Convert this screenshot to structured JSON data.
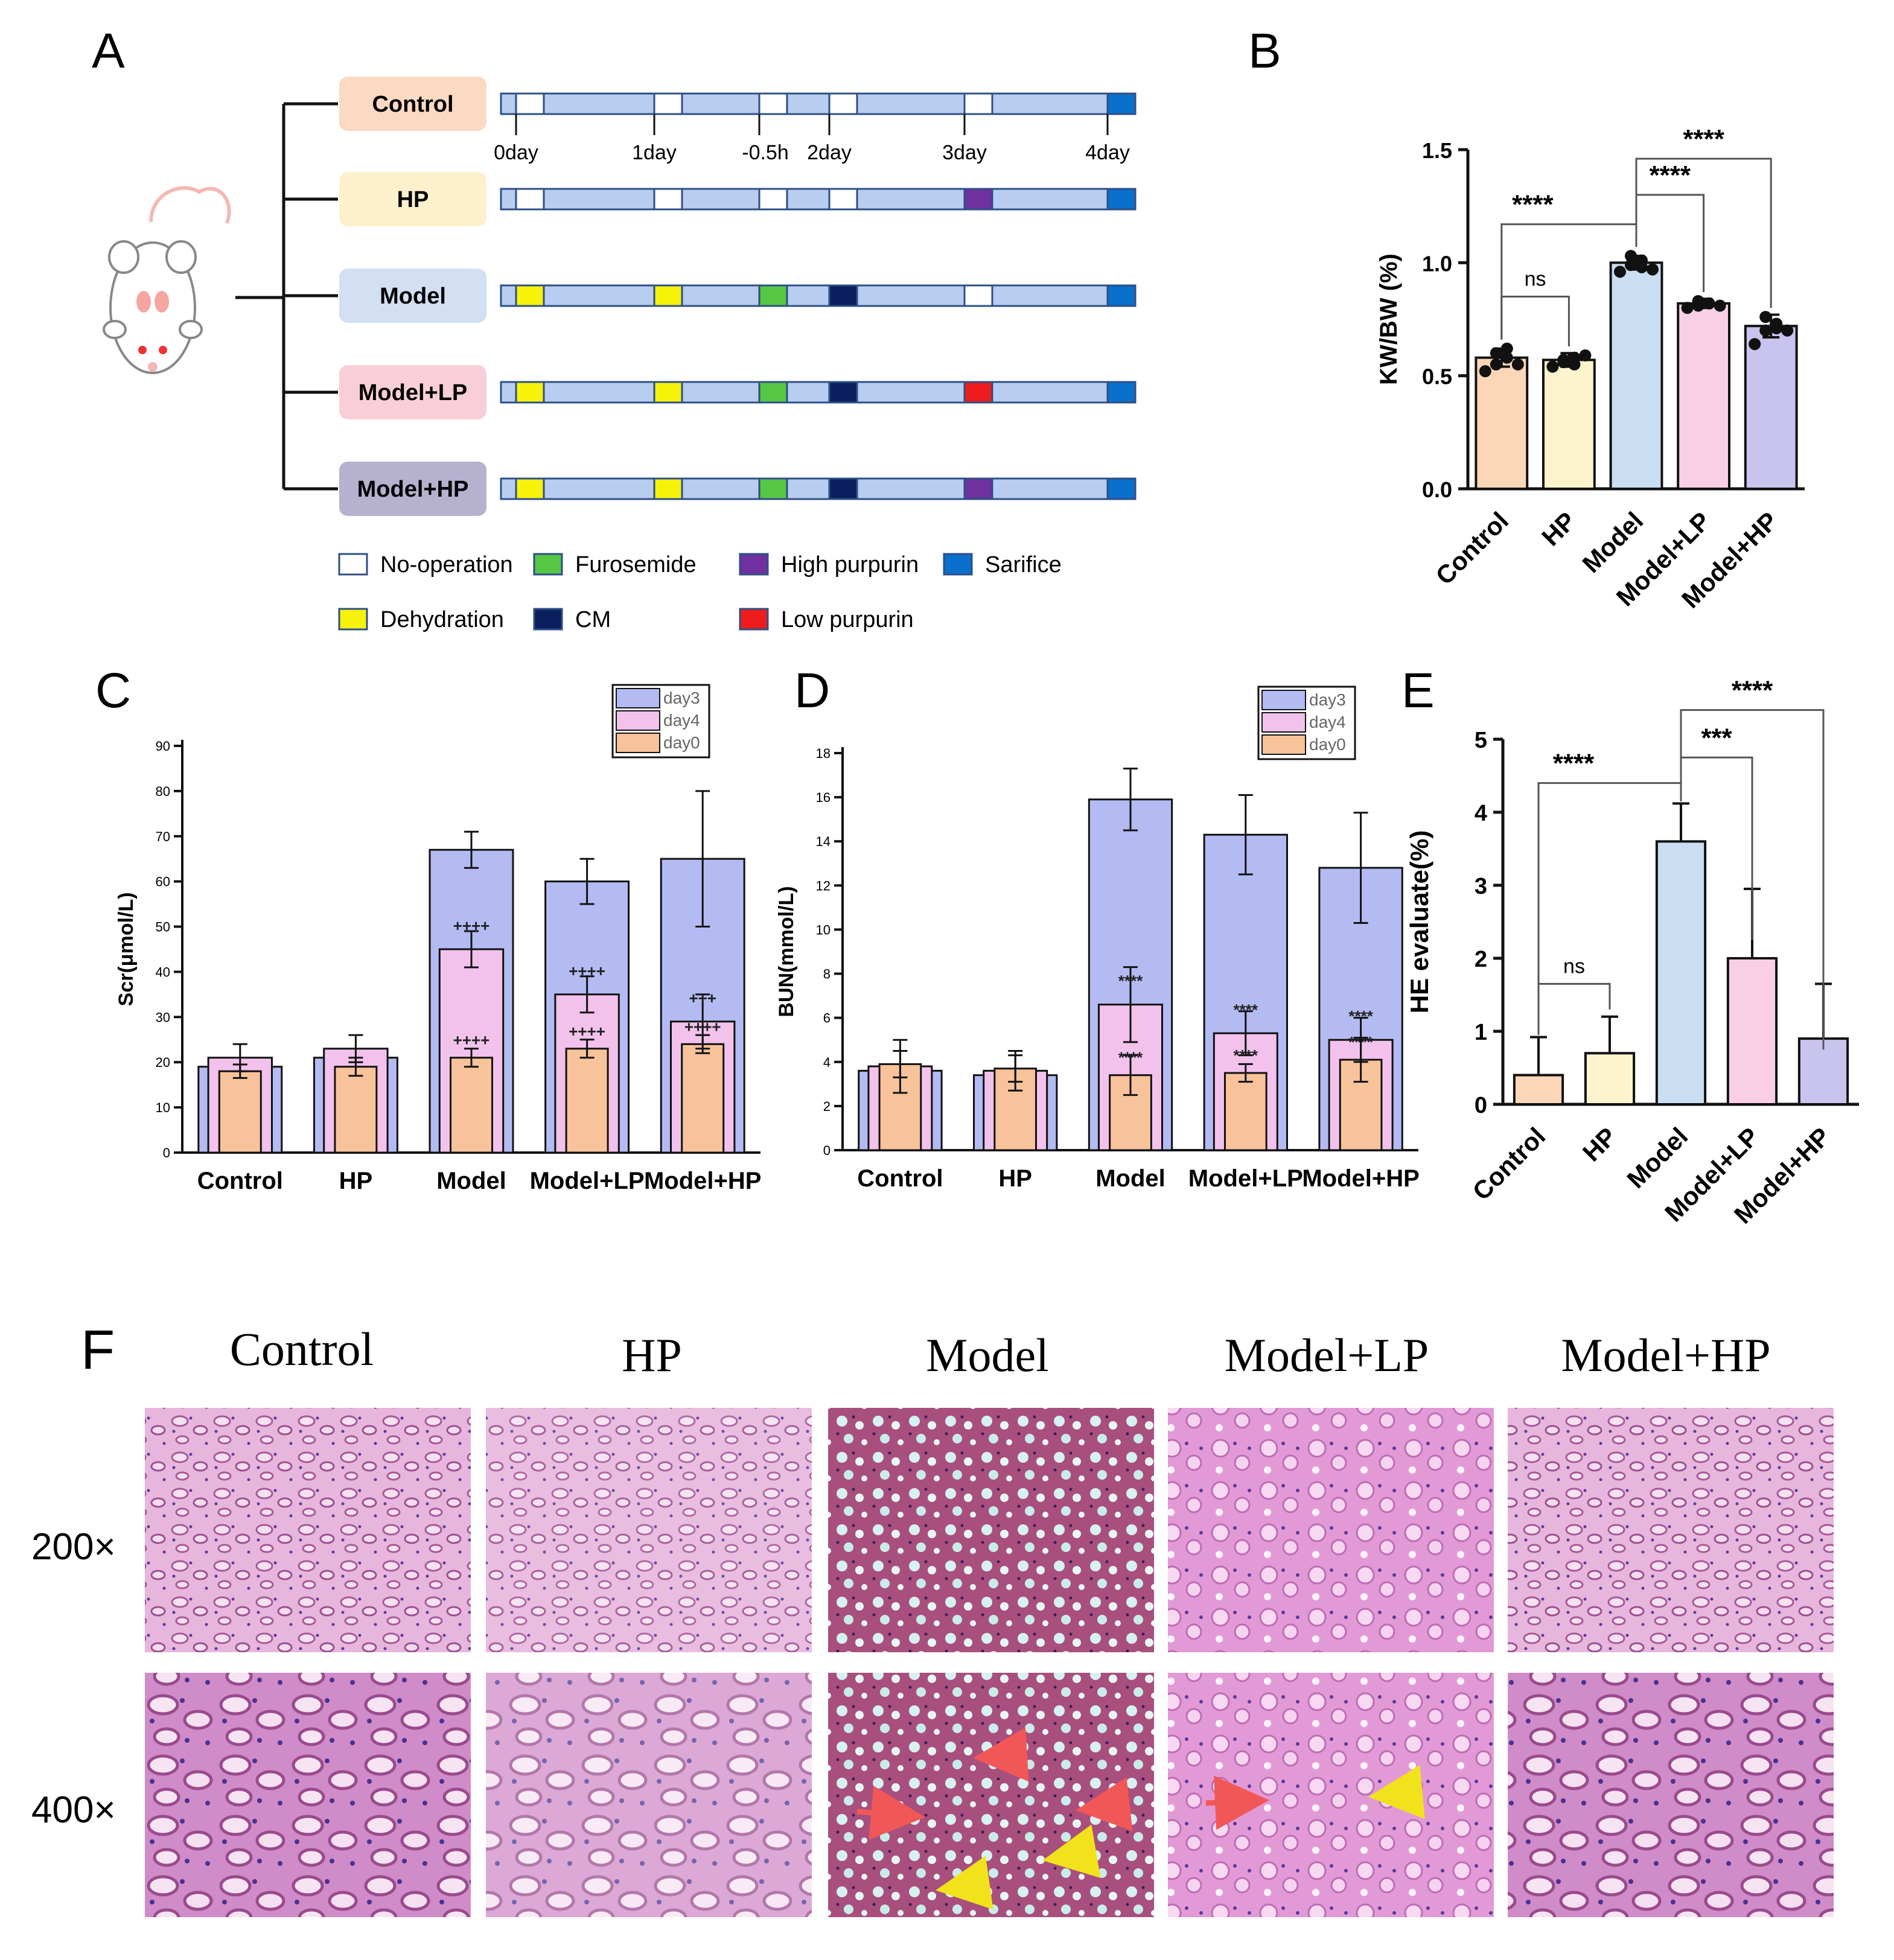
{
  "panels": {
    "a": "A",
    "b": "B",
    "c": "C",
    "d": "D",
    "e": "E",
    "f": "F"
  },
  "colors": {
    "control": "#fbd7b7",
    "hp": "#fdf4cd",
    "model": "#c9def3",
    "model_lp": "#f9cfe5",
    "model_hp": "#c9c4ee",
    "bar_day3": "#b3bbf2",
    "bar_day4": "#f2c2ec",
    "bar_day0": "#f8c39a",
    "timeline_fill": "#b9cdf0",
    "timeline_stroke": "#2e4f86",
    "no_operation": "#ffffff",
    "dehydration": "#f7f20a",
    "furosemide": "#57c645",
    "cm": "#0b1f5f",
    "high_purpurin": "#7030a0",
    "low_purpurin": "#ee1c1c",
    "sacrifice": "#0b6fcc"
  },
  "timeline": {
    "groups": [
      {
        "label": "Control",
        "color": "#fbd9c3"
      },
      {
        "label": "HP",
        "color": "#fdf0cc"
      },
      {
        "label": "Model",
        "color": "#d3e0f3"
      },
      {
        "label": "Model+LP",
        "color": "#f8cfd8"
      },
      {
        "label": "Model+HP",
        "color": "#b5b1cf"
      }
    ],
    "day_labels": [
      "0day",
      "1day",
      "-0.5h",
      "2day",
      "3day",
      "4day"
    ],
    "schedule": [
      [
        "no_operation",
        "no_operation",
        "no_operation",
        "no_operation",
        "no_operation",
        "sacrifice"
      ],
      [
        "no_operation",
        "no_operation",
        "no_operation",
        "no_operation",
        "high_purpurin",
        "sacrifice"
      ],
      [
        "dehydration",
        "dehydration",
        "furosemide",
        "cm",
        "no_operation",
        "sacrifice"
      ],
      [
        "dehydration",
        "dehydration",
        "furosemide",
        "cm",
        "low_purpurin",
        "sacrifice"
      ],
      [
        "dehydration",
        "dehydration",
        "furosemide",
        "cm",
        "high_purpurin",
        "sacrifice"
      ]
    ],
    "legend": [
      {
        "key": "no_operation",
        "label": "No-operation"
      },
      {
        "key": "furosemide",
        "label": "Furosemide"
      },
      {
        "key": "high_purpurin",
        "label": "High purpurin"
      },
      {
        "key": "sacrifice",
        "label": "Sarifice"
      },
      {
        "key": "dehydration",
        "label": "Dehydration"
      },
      {
        "key": "cm",
        "label": "CM"
      },
      {
        "key": "low_purpurin",
        "label": "Low purpurin"
      }
    ]
  },
  "chart_data": [
    {
      "panel": "B",
      "type": "bar",
      "ylabel": "KW/BW (%)",
      "ylim": [
        0,
        1.5
      ],
      "yticks": [
        "0.0",
        "0.5",
        "1.0",
        "1.5"
      ],
      "categories": [
        "Control",
        "HP",
        "Model",
        "Model+LP",
        "Model+HP"
      ],
      "values": [
        0.58,
        0.57,
        1.0,
        0.82,
        0.72
      ],
      "errors": [
        0.04,
        0.03,
        0.03,
        0.02,
        0.05
      ],
      "points": [
        [
          0.52,
          0.55,
          0.58,
          0.6,
          0.62,
          0.55
        ],
        [
          0.54,
          0.56,
          0.58,
          0.57,
          0.55,
          0.59
        ],
        [
          0.96,
          0.99,
          1.01,
          1.03,
          0.98,
          0.97
        ],
        [
          0.8,
          0.81,
          0.82,
          0.83,
          0.82,
          0.81
        ],
        [
          0.64,
          0.7,
          0.73,
          0.76,
          0.71,
          0.7
        ]
      ],
      "annotations": [
        {
          "text": "ns",
          "from": "Control",
          "to": "HP"
        },
        {
          "text": "****",
          "from": "Control",
          "to": "Model"
        },
        {
          "text": "****",
          "from": "Model",
          "to": "Model+LP"
        },
        {
          "text": "****",
          "from": "Model",
          "to": "Model+HP"
        }
      ]
    },
    {
      "panel": "C",
      "type": "bar",
      "ylabel": "Scr(μmol/L)",
      "ylim": [
        0,
        90
      ],
      "yticks": [
        "0",
        "10",
        "20",
        "30",
        "40",
        "50",
        "60",
        "70",
        "80",
        "90"
      ],
      "categories": [
        "Control",
        "HP",
        "Model",
        "Model+LP",
        "Model+HP"
      ],
      "series": [
        {
          "name": "day3",
          "values": [
            19,
            21,
            67,
            60,
            65
          ],
          "errors": [
            0,
            0,
            4,
            5,
            15
          ]
        },
        {
          "name": "day4",
          "values": [
            21,
            23,
            45,
            35,
            29
          ],
          "errors": [
            3,
            3,
            4,
            4,
            6
          ]
        },
        {
          "name": "day0",
          "values": [
            18,
            19,
            21,
            23,
            24
          ],
          "errors": [
            1.5,
            2,
            2,
            2,
            2
          ]
        }
      ],
      "marks": [
        {
          "category": "Model",
          "series": "day4",
          "text": "++++"
        },
        {
          "category": "Model",
          "series": "day0",
          "text": "++++"
        },
        {
          "category": "Model+LP",
          "series": "day4",
          "text": "++++"
        },
        {
          "category": "Model+LP",
          "series": "day0",
          "text": "++++"
        },
        {
          "category": "Model+HP",
          "series": "day4",
          "text": "+++"
        },
        {
          "category": "Model+HP",
          "series": "day0",
          "text": "++++"
        }
      ]
    },
    {
      "panel": "D",
      "type": "bar",
      "ylabel": "BUN(mmol/L)",
      "ylim": [
        0,
        18
      ],
      "yticks": [
        "0",
        "2",
        "4",
        "6",
        "8",
        "10",
        "12",
        "14",
        "16",
        "18"
      ],
      "categories": [
        "Control",
        "HP",
        "Model",
        "Model+LP",
        "Model+HP"
      ],
      "series": [
        {
          "name": "day3",
          "values": [
            3.6,
            3.4,
            15.9,
            14.3,
            12.8
          ],
          "errors": [
            0,
            0,
            1.4,
            1.8,
            2.5
          ]
        },
        {
          "name": "day4",
          "values": [
            3.8,
            3.6,
            6.6,
            5.3,
            5.0
          ],
          "errors": [
            1.2,
            0.9,
            1.7,
            1.0,
            1.0
          ]
        },
        {
          "name": "day0",
          "values": [
            3.9,
            3.7,
            3.4,
            3.5,
            4.1
          ],
          "errors": [
            0.6,
            0.6,
            0.9,
            0.4,
            1.0
          ]
        }
      ],
      "marks": [
        {
          "category": "Model",
          "series": "day4",
          "text": "****"
        },
        {
          "category": "Model",
          "series": "day0",
          "text": "****"
        },
        {
          "category": "Model+LP",
          "series": "day4",
          "text": "****"
        },
        {
          "category": "Model+LP",
          "series": "day0",
          "text": "****"
        },
        {
          "category": "Model+HP",
          "series": "day4",
          "text": "****"
        },
        {
          "category": "Model+HP",
          "series": "day0",
          "text": "****"
        }
      ]
    },
    {
      "panel": "E",
      "type": "bar",
      "ylabel": "HE evaluate(%)",
      "ylim": [
        0,
        5
      ],
      "yticks": [
        "0",
        "1",
        "2",
        "3",
        "4",
        "5"
      ],
      "categories": [
        "Control",
        "HP",
        "Model",
        "Model+LP",
        "Model+HP"
      ],
      "values": [
        0.4,
        0.7,
        3.6,
        2.0,
        0.9
      ],
      "errors": [
        0.52,
        0.5,
        0.52,
        0.95,
        0.75
      ],
      "annotations": [
        {
          "text": "ns",
          "from": "Control",
          "to": "HP"
        },
        {
          "text": "****",
          "from": "Control",
          "to": "Model"
        },
        {
          "text": "***",
          "from": "Model",
          "to": "Model+LP"
        },
        {
          "text": "****",
          "from": "Model",
          "to": "Model+HP"
        }
      ]
    }
  ],
  "histology": {
    "columns": [
      "Control",
      "HP",
      "Model",
      "Model+LP",
      "Model+HP"
    ],
    "rows": [
      "200×",
      "400×"
    ]
  }
}
